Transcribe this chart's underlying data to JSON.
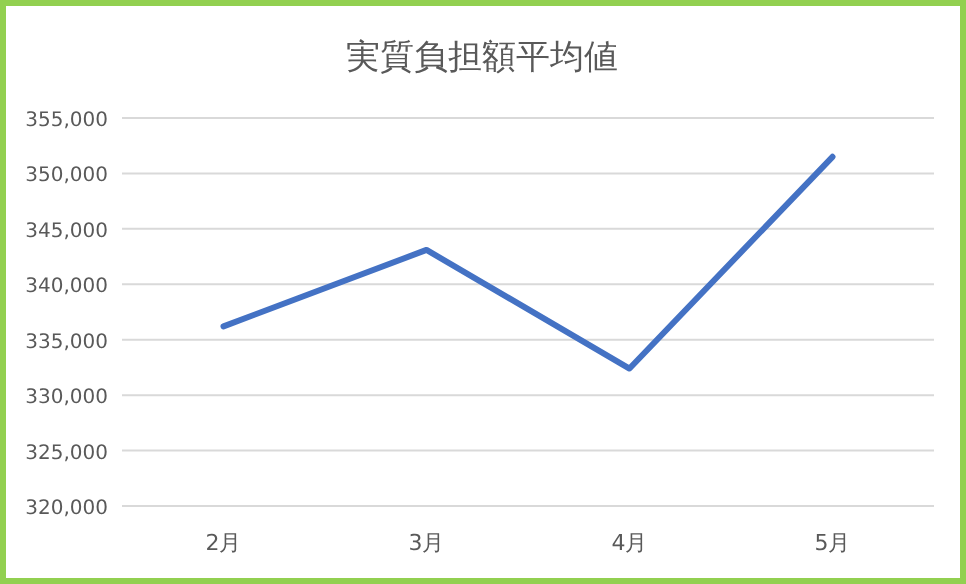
{
  "chart_data": {
    "type": "line",
    "title": "実質負担額平均値",
    "categories": [
      "2月",
      "3月",
      "4月",
      "5月"
    ],
    "series": [
      {
        "color": "#4472c4",
        "values": [
          336200,
          343100,
          332400,
          351500
        ]
      }
    ],
    "ylim": [
      320000,
      355000
    ],
    "yticks": [
      {
        "value": 320000,
        "label": "320,000"
      },
      {
        "value": 325000,
        "label": "325,000"
      },
      {
        "value": 330000,
        "label": "330,000"
      },
      {
        "value": 335000,
        "label": "335,000"
      },
      {
        "value": 340000,
        "label": "340,000"
      },
      {
        "value": 345000,
        "label": "345,000"
      },
      {
        "value": 350000,
        "label": "350,000"
      },
      {
        "value": 355000,
        "label": "355,000"
      }
    ],
    "grid": "y",
    "marker": "none",
    "line_style": "solid"
  }
}
